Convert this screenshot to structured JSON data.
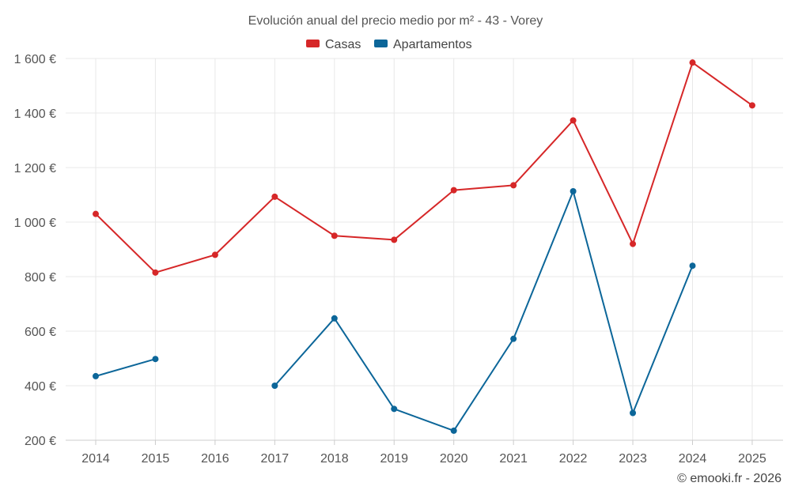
{
  "chart_data": {
    "type": "line",
    "title": "Evolución anual del precio medio por m² - 43 - Vorey",
    "categories": [
      "2014",
      "2015",
      "2016",
      "2017",
      "2018",
      "2019",
      "2020",
      "2021",
      "2022",
      "2023",
      "2024",
      "2025"
    ],
    "ylim": [
      200,
      1600
    ],
    "yticks": [
      200,
      400,
      600,
      800,
      1000,
      1200,
      1400,
      1600
    ],
    "ytick_labels": [
      "200 €",
      "400 €",
      "600 €",
      "800 €",
      "1 000 €",
      "1 200 €",
      "1 400 €",
      "1 600 €"
    ],
    "series": [
      {
        "name": "Casas",
        "color": "#d62728",
        "values": [
          1030,
          815,
          880,
          1093,
          950,
          935,
          1117,
          1135,
          1373,
          920,
          1585,
          1428
        ]
      },
      {
        "name": "Apartamentos",
        "color": "#0c6699",
        "values": [
          435,
          498,
          null,
          400,
          647,
          315,
          235,
          572,
          1113,
          300,
          840,
          null
        ]
      }
    ],
    "xlabel": "",
    "ylabel": "",
    "legend_position": "top-center",
    "grid": true
  },
  "credit": "© emooki.fr - 2026"
}
